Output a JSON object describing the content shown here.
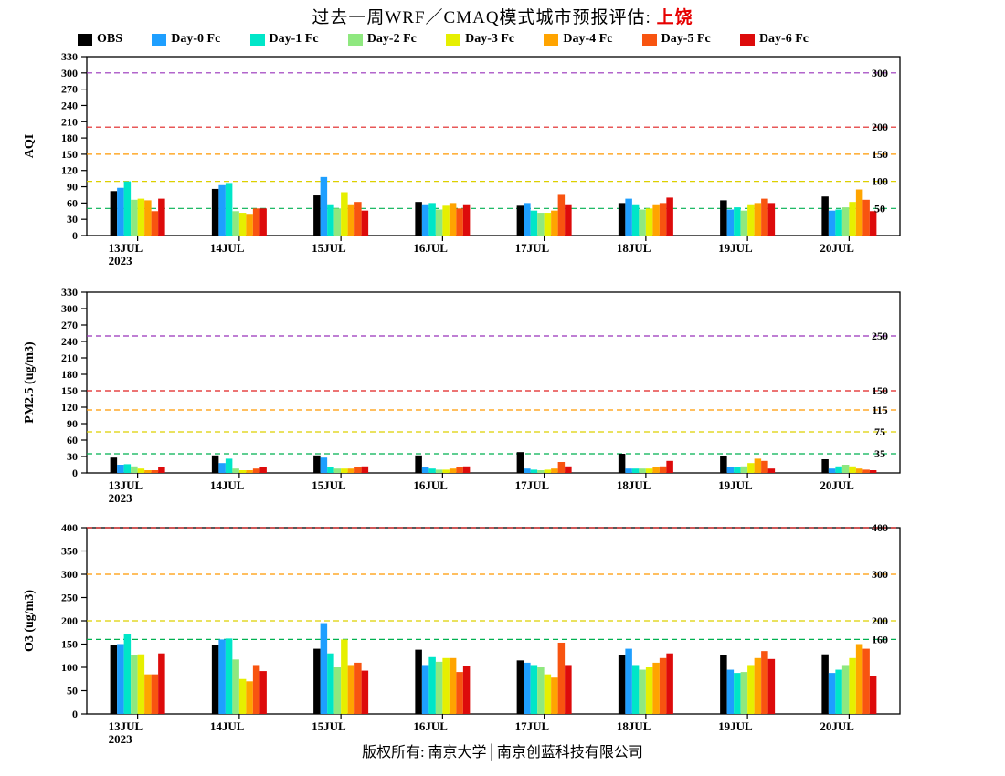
{
  "title": {
    "main": "过去一周WRF／CMAQ模式城市预报评估: ",
    "city": "上饶",
    "city_color": "#e60000"
  },
  "footer": {
    "copyright": "版权所有: 南京大学│南京创蓝科技有限公司"
  },
  "legend": [
    {
      "label": "OBS",
      "color": "#000000"
    },
    {
      "label": "Day-0 Fc",
      "color": "#1e9fff"
    },
    {
      "label": "Day-1 Fc",
      "color": "#00e6c8"
    },
    {
      "label": "Day-2 Fc",
      "color": "#8fe87f"
    },
    {
      "label": "Day-3 Fc",
      "color": "#e6ef00"
    },
    {
      "label": "Day-4 Fc",
      "color": "#ffa400"
    },
    {
      "label": "Day-5 Fc",
      "color": "#f85410"
    },
    {
      "label": "Day-6 Fc",
      "color": "#dd0b0b"
    }
  ],
  "chart_data": [
    {
      "type": "bar",
      "ylabel": "AQI",
      "ylim": [
        0,
        330
      ],
      "ytick_step": 30,
      "categories": [
        "13JUL",
        "14JUL",
        "15JUL",
        "16JUL",
        "17JUL",
        "18JUL",
        "19JUL",
        "20JUL"
      ],
      "x_sub_label": "2023",
      "thresholds": [
        {
          "value": 50,
          "color": "#00b050",
          "label": "50"
        },
        {
          "value": 100,
          "color": "#ddd000",
          "label": "100"
        },
        {
          "value": 150,
          "color": "#ff9900",
          "label": "150"
        },
        {
          "value": 200,
          "color": "#e02020",
          "label": "200"
        },
        {
          "value": 300,
          "color": "#9933bb",
          "label": "300"
        }
      ],
      "series": [
        {
          "name": "OBS",
          "values": [
            82,
            86,
            74,
            62,
            55,
            60,
            65,
            72
          ]
        },
        {
          "name": "Day-0 Fc",
          "values": [
            88,
            93,
            108,
            56,
            60,
            68,
            48,
            46
          ]
        },
        {
          "name": "Day-1 Fc",
          "values": [
            100,
            97,
            56,
            60,
            46,
            56,
            52,
            48
          ]
        },
        {
          "name": "Day-2 Fc",
          "values": [
            66,
            45,
            50,
            48,
            42,
            48,
            46,
            52
          ]
        },
        {
          "name": "Day-3 Fc",
          "values": [
            68,
            42,
            80,
            55,
            42,
            50,
            56,
            62
          ]
        },
        {
          "name": "Day-4 Fc",
          "values": [
            65,
            40,
            56,
            60,
            46,
            56,
            60,
            85
          ]
        },
        {
          "name": "Day-5 Fc",
          "values": [
            45,
            50,
            62,
            50,
            75,
            60,
            68,
            66
          ]
        },
        {
          "name": "Day-6 Fc",
          "values": [
            68,
            50,
            46,
            56,
            56,
            70,
            60,
            45
          ]
        }
      ]
    },
    {
      "type": "bar",
      "ylabel": "PM2.5 (ug/m3)",
      "ylim": [
        0,
        330
      ],
      "ytick_step": 30,
      "categories": [
        "13JUL",
        "14JUL",
        "15JUL",
        "16JUL",
        "17JUL",
        "18JUL",
        "19JUL",
        "20JUL"
      ],
      "x_sub_label": "2023",
      "thresholds": [
        {
          "value": 35,
          "color": "#00b050",
          "label": "35"
        },
        {
          "value": 75,
          "color": "#ddd000",
          "label": "75"
        },
        {
          "value": 115,
          "color": "#ff9900",
          "label": "115"
        },
        {
          "value": 150,
          "color": "#e02020",
          "label": "150"
        },
        {
          "value": 250,
          "color": "#9933bb",
          "label": "250"
        }
      ],
      "series": [
        {
          "name": "OBS",
          "values": [
            28,
            32,
            32,
            32,
            38,
            35,
            30,
            25
          ]
        },
        {
          "name": "Day-0 Fc",
          "values": [
            15,
            18,
            28,
            10,
            8,
            8,
            10,
            8
          ]
        },
        {
          "name": "Day-1 Fc",
          "values": [
            16,
            26,
            10,
            8,
            6,
            8,
            10,
            12
          ]
        },
        {
          "name": "Day-2 Fc",
          "values": [
            12,
            8,
            8,
            6,
            5,
            8,
            12,
            15
          ]
        },
        {
          "name": "Day-3 Fc",
          "values": [
            8,
            5,
            8,
            6,
            6,
            8,
            18,
            12
          ]
        },
        {
          "name": "Day-4 Fc",
          "values": [
            5,
            5,
            8,
            8,
            8,
            10,
            26,
            8
          ]
        },
        {
          "name": "Day-5 Fc",
          "values": [
            5,
            8,
            10,
            10,
            20,
            12,
            22,
            6
          ]
        },
        {
          "name": "Day-6 Fc",
          "values": [
            10,
            10,
            12,
            12,
            12,
            22,
            8,
            5
          ]
        }
      ]
    },
    {
      "type": "bar",
      "ylabel": "O3 (ug/m3)",
      "ylim": [
        0,
        400
      ],
      "ytick_step": 50,
      "categories": [
        "13JUL",
        "14JUL",
        "15JUL",
        "16JUL",
        "17JUL",
        "18JUL",
        "19JUL",
        "20JUL"
      ],
      "x_sub_label": "2023",
      "thresholds": [
        {
          "value": 160,
          "color": "#00b050",
          "label": "160"
        },
        {
          "value": 200,
          "color": "#ddd000",
          "label": "200"
        },
        {
          "value": 300,
          "color": "#ff9900",
          "label": "300"
        },
        {
          "value": 400,
          "color": "#e02020",
          "label": "400"
        }
      ],
      "series": [
        {
          "name": "OBS",
          "values": [
            148,
            148,
            140,
            138,
            115,
            127,
            127,
            128
          ]
        },
        {
          "name": "Day-0 Fc",
          "values": [
            150,
            160,
            195,
            105,
            110,
            140,
            95,
            88
          ]
        },
        {
          "name": "Day-1 Fc",
          "values": [
            172,
            162,
            130,
            122,
            105,
            105,
            88,
            95
          ]
        },
        {
          "name": "Day-2 Fc",
          "values": [
            127,
            117,
            100,
            112,
            100,
            95,
            90,
            105
          ]
        },
        {
          "name": "Day-3 Fc",
          "values": [
            128,
            75,
            160,
            120,
            85,
            100,
            105,
            120
          ]
        },
        {
          "name": "Day-4 Fc",
          "values": [
            85,
            70,
            105,
            120,
            78,
            110,
            120,
            150
          ]
        },
        {
          "name": "Day-5 Fc",
          "values": [
            85,
            105,
            110,
            90,
            153,
            120,
            135,
            140
          ]
        },
        {
          "name": "Day-6 Fc",
          "values": [
            130,
            92,
            93,
            103,
            105,
            130,
            118,
            82
          ]
        }
      ]
    }
  ]
}
